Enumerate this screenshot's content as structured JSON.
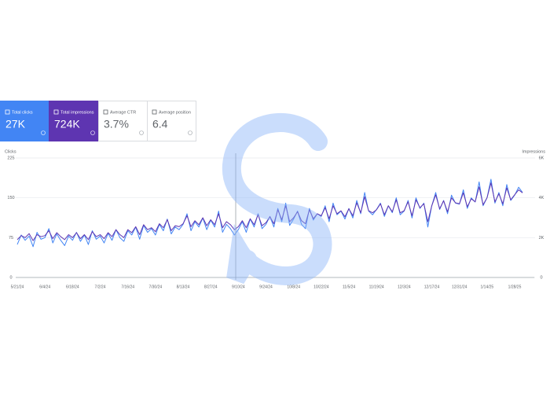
{
  "cards": [
    {
      "label": "Total clicks",
      "value": "27K"
    },
    {
      "label": "Total impressions",
      "value": "724K"
    },
    {
      "label": "Average CTR",
      "value": "3.7%"
    },
    {
      "label": "Average position",
      "value": "6.4"
    }
  ],
  "chart_data": {
    "type": "line",
    "ylabel": "Clicks",
    "y2label": "Impressions",
    "categories": [
      "5/21/24",
      null,
      null,
      null,
      null,
      null,
      null,
      "6/4/24",
      null,
      null,
      null,
      null,
      null,
      null,
      "6/18/24",
      null,
      null,
      null,
      null,
      null,
      null,
      "7/2/24",
      null,
      null,
      null,
      null,
      null,
      null,
      "7/16/24",
      null,
      null,
      null,
      null,
      null,
      null,
      "7/30/24",
      null,
      null,
      null,
      null,
      null,
      null,
      "8/13/24",
      null,
      null,
      null,
      null,
      null,
      null,
      "8/27/24",
      null,
      null,
      null,
      null,
      null,
      null,
      "9/10/24",
      null,
      null,
      null,
      null,
      null,
      null,
      "9/24/24",
      null,
      null,
      null,
      null,
      null,
      null,
      "10/8/24",
      null,
      null,
      null,
      null,
      null,
      null,
      "10/22/24",
      null,
      null,
      null,
      null,
      null,
      null,
      "11/5/24",
      null,
      null,
      null,
      null,
      null,
      null,
      "11/19/24",
      null,
      null,
      null,
      null,
      null,
      null,
      "12/3/24",
      null,
      null,
      null,
      null,
      null,
      null,
      "12/17/24",
      null,
      null,
      null,
      null,
      null,
      null,
      "12/31/24",
      null,
      null,
      null,
      null,
      null,
      null,
      "1/14/25",
      null,
      null,
      null,
      null,
      null,
      null,
      "1/28/25",
      null,
      null
    ],
    "series": [
      {
        "color": "#4285f4",
        "axis": "y",
        "values": [
          62,
          80,
          70,
          78,
          58,
          85,
          72,
          75,
          92,
          65,
          82,
          70,
          60,
          78,
          70,
          85,
          68,
          80,
          62,
          88,
          72,
          78,
          65,
          83,
          70,
          90,
          75,
          68,
          88,
          80,
          95,
          72,
          98,
          85,
          92,
          80,
          100,
          88,
          110,
          82,
          95,
          90,
          100,
          120,
          88,
          105,
          95,
          112,
          90,
          108,
          95,
          125,
          85,
          100,
          92,
          80,
          90,
          105,
          85,
          110,
          95,
          120,
          92,
          100,
          115,
          95,
          130,
          105,
          140,
          98,
          110,
          125,
          100,
          92,
          130,
          108,
          120,
          115,
          135,
          105,
          140,
          118,
          125,
          110,
          130,
          112,
          145,
          120,
          160,
          125,
          118,
          128,
          140,
          115,
          135,
          122,
          150,
          118,
          125,
          145,
          112,
          150,
          130,
          140,
          95,
          135,
          160,
          128,
          145,
          120,
          155,
          140,
          138,
          165,
          130,
          150,
          142,
          180,
          135,
          150,
          185,
          140,
          160,
          135,
          175,
          145,
          155,
          170,
          160
        ]
      },
      {
        "color": "#5e35b1",
        "axis": "y2",
        "values": [
          1900,
          2100,
          2000,
          2200,
          1850,
          2150,
          2050,
          2100,
          2350,
          1950,
          2250,
          2050,
          1900,
          2150,
          2000,
          2250,
          1950,
          2150,
          1900,
          2300,
          2050,
          2150,
          1950,
          2250,
          2050,
          2400,
          2150,
          2000,
          2400,
          2250,
          2550,
          2150,
          2650,
          2400,
          2500,
          2300,
          2700,
          2500,
          2900,
          2350,
          2600,
          2550,
          2700,
          3100,
          2550,
          2850,
          2650,
          3000,
          2600,
          2900,
          2650,
          3200,
          2500,
          2800,
          2650,
          2400,
          2550,
          2850,
          2500,
          2950,
          2650,
          3150,
          2600,
          2750,
          3050,
          2700,
          3400,
          2900,
          3600,
          2800,
          3000,
          3300,
          2850,
          2700,
          3400,
          2950,
          3200,
          3100,
          3500,
          2950,
          3600,
          3200,
          3350,
          3050,
          3450,
          3100,
          3750,
          3250,
          4050,
          3350,
          3250,
          3400,
          3700,
          3150,
          3600,
          3300,
          3900,
          3250,
          3350,
          3800,
          3100,
          3900,
          3500,
          3700,
          2800,
          3600,
          4150,
          3450,
          3850,
          3300,
          4000,
          3750,
          3700,
          4250,
          3550,
          3950,
          3800,
          4550,
          3650,
          4000,
          4750,
          3800,
          4200,
          3700,
          4500,
          3900,
          4150,
          4400,
          4250
        ]
      }
    ],
    "ylim": [
      0,
      225
    ],
    "yticks": [
      0,
      75,
      150,
      225
    ],
    "y2lim": [
      0,
      6000
    ],
    "y2ticks": [
      0,
      {
        "value": 2000,
        "label": "2K"
      },
      {
        "value": 4000,
        "label": "4K"
      },
      {
        "value": 6000,
        "label": "6K"
      }
    ],
    "grid": true
  }
}
